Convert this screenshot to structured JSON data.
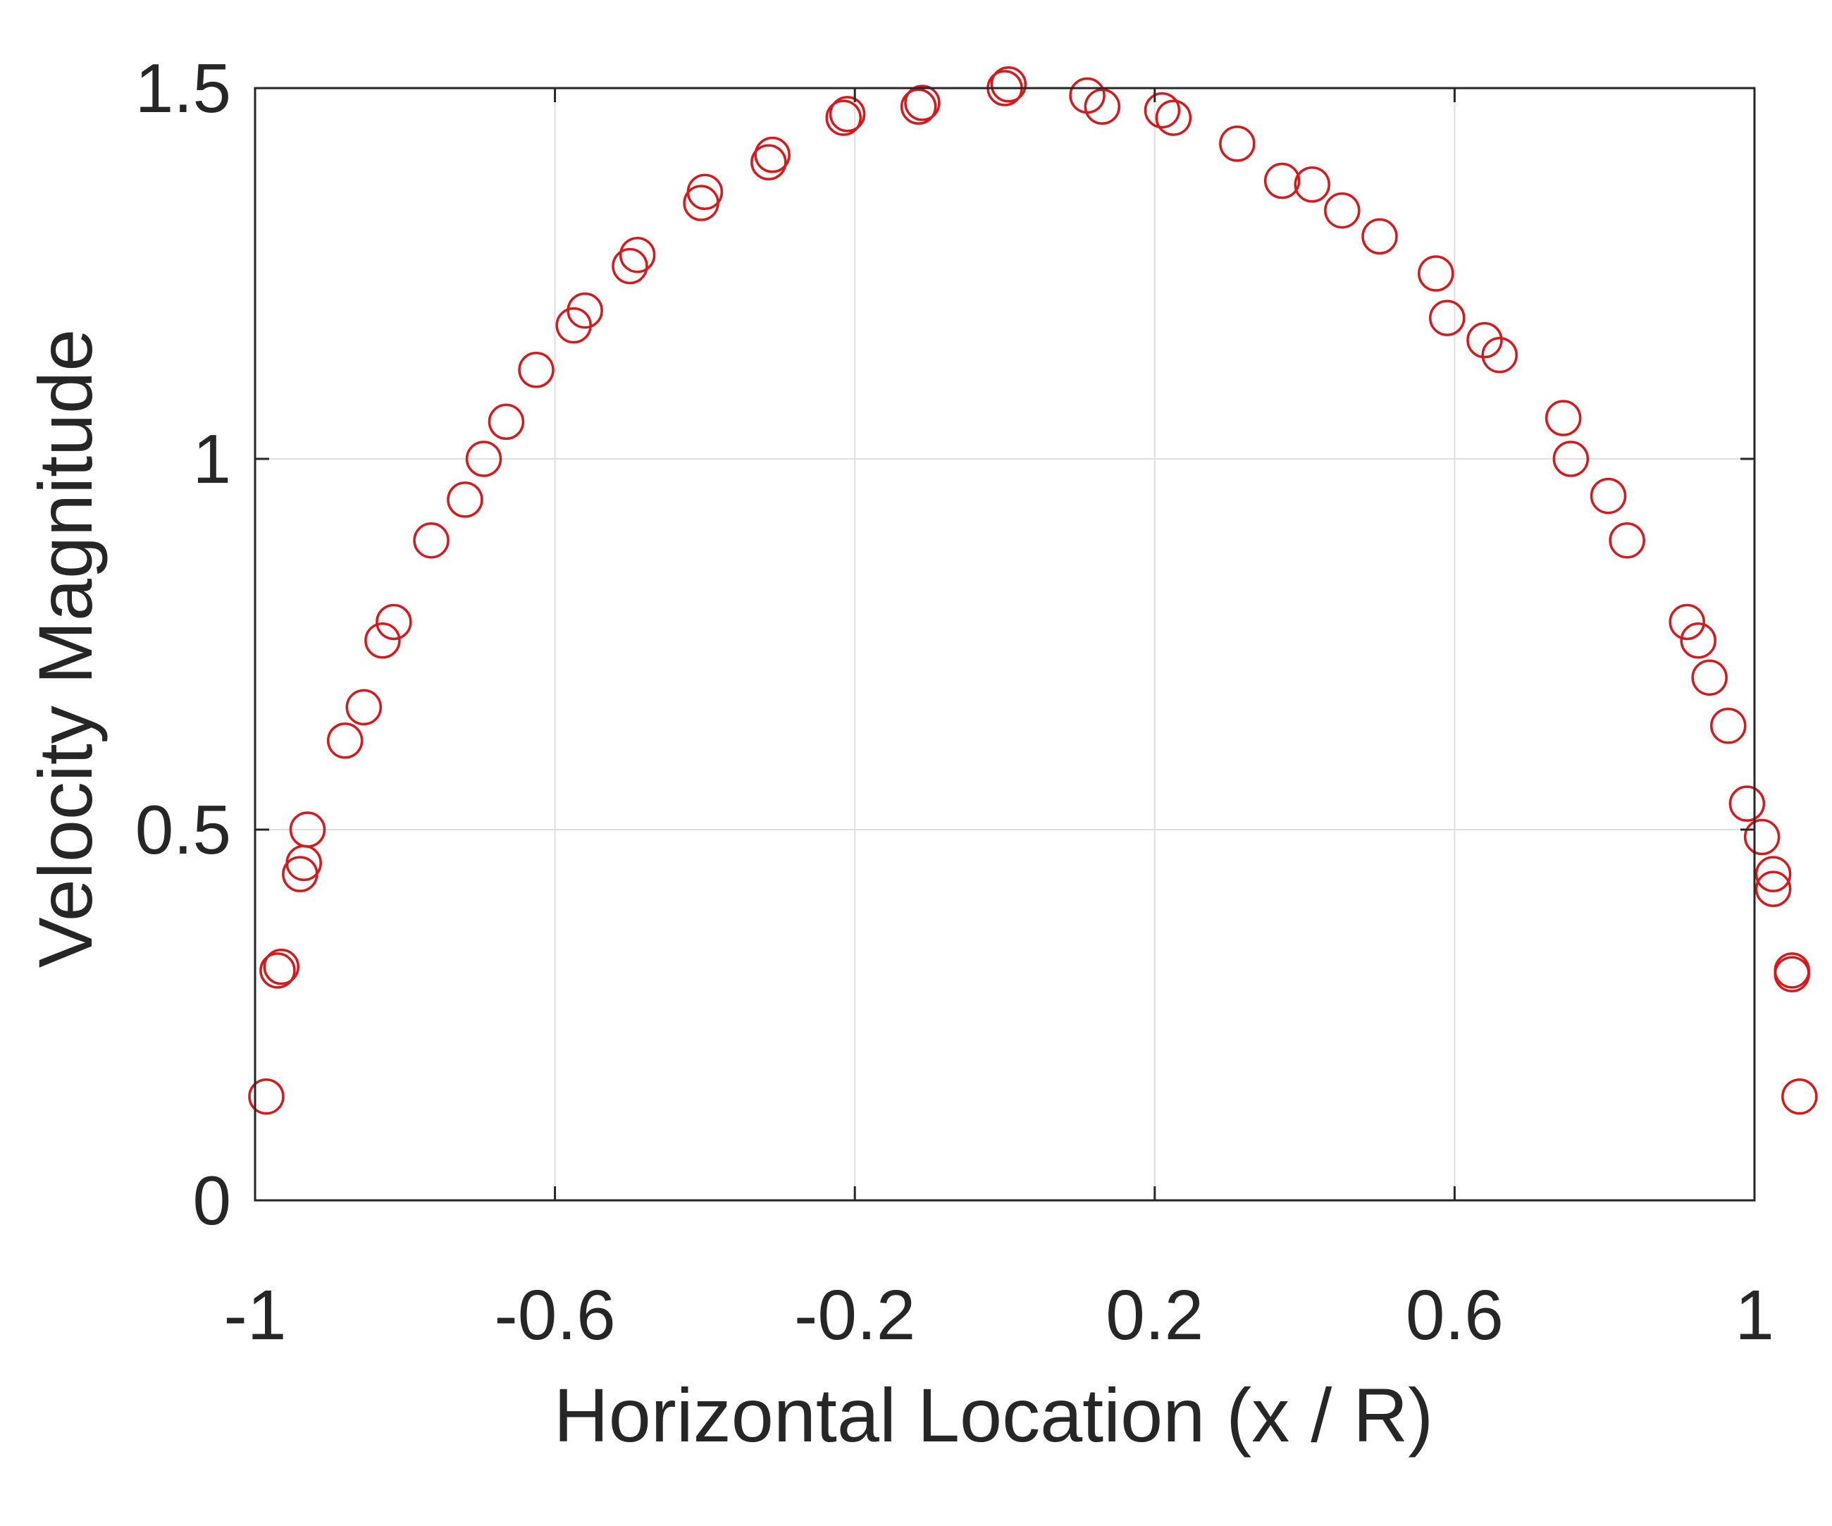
{
  "chart_data": {
    "type": "scatter",
    "title": "",
    "xlabel": "Horizontal Location (x / R)",
    "ylabel": "Velocity Magnitude",
    "xlim": [
      -1,
      1
    ],
    "ylim": [
      0,
      1.5
    ],
    "xticks": [
      -1,
      -0.6,
      -0.2,
      0.2,
      0.6,
      1
    ],
    "xtick_labels": [
      "-1",
      "-0.6",
      "-0.2",
      "0.2",
      "0.6",
      "1"
    ],
    "yticks": [
      0,
      0.5,
      1,
      1.5
    ],
    "ytick_labels": [
      "0",
      "0.5",
      "1",
      "1.5"
    ],
    "grid": true,
    "marker": "open-circle",
    "marker_color": "#d7191c",
    "series": [
      {
        "points": [
          [
            -0.985,
            0.14
          ],
          [
            -0.97,
            0.31
          ],
          [
            -0.965,
            0.315
          ],
          [
            -0.94,
            0.44
          ],
          [
            -0.935,
            0.455
          ],
          [
            -0.93,
            0.5
          ],
          [
            -0.88,
            0.62
          ],
          [
            -0.855,
            0.665
          ],
          [
            -0.83,
            0.755
          ],
          [
            -0.815,
            0.78
          ],
          [
            -0.765,
            0.89
          ],
          [
            -0.72,
            0.945
          ],
          [
            -0.695,
            1.0
          ],
          [
            -0.665,
            1.05
          ],
          [
            -0.625,
            1.12
          ],
          [
            -0.575,
            1.18
          ],
          [
            -0.56,
            1.2
          ],
          [
            -0.5,
            1.26
          ],
          [
            -0.49,
            1.275
          ],
          [
            -0.405,
            1.345
          ],
          [
            -0.4,
            1.36
          ],
          [
            -0.315,
            1.4
          ],
          [
            -0.31,
            1.41
          ],
          [
            -0.215,
            1.46
          ],
          [
            -0.21,
            1.465
          ],
          [
            -0.115,
            1.475
          ],
          [
            -0.11,
            1.48
          ],
          [
            0.0,
            1.5
          ],
          [
            0.005,
            1.505
          ],
          [
            0.11,
            1.49
          ],
          [
            0.13,
            1.475
          ],
          [
            0.21,
            1.47
          ],
          [
            0.225,
            1.46
          ],
          [
            0.31,
            1.425
          ],
          [
            0.37,
            1.375
          ],
          [
            0.41,
            1.37
          ],
          [
            0.45,
            1.335
          ],
          [
            0.5,
            1.3
          ],
          [
            0.575,
            1.25
          ],
          [
            0.59,
            1.19
          ],
          [
            0.64,
            1.16
          ],
          [
            0.66,
            1.14
          ],
          [
            0.745,
            1.055
          ],
          [
            0.755,
            1.0
          ],
          [
            0.805,
            0.95
          ],
          [
            0.83,
            0.89
          ],
          [
            0.91,
            0.78
          ],
          [
            0.925,
            0.755
          ],
          [
            0.94,
            0.705
          ],
          [
            0.965,
            0.64
          ],
          [
            0.99,
            0.535
          ],
          [
            1.01,
            0.49
          ],
          [
            1.025,
            0.44
          ],
          [
            1.025,
            0.42
          ],
          [
            1.05,
            0.305
          ],
          [
            1.05,
            0.31
          ],
          [
            1.06,
            0.14
          ]
        ]
      }
    ]
  }
}
